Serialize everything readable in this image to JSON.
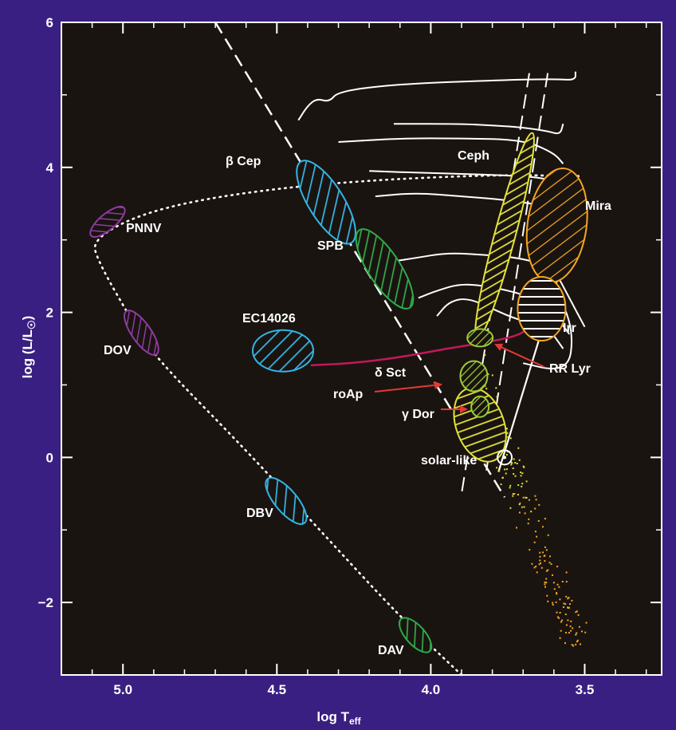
{
  "chart_data": {
    "type": "scatter",
    "title": "",
    "xlabel": "log T",
    "xlabel_sub": "eff",
    "ylabel_pre": "log (L/L",
    "ylabel_post": ")",
    "xlim": [
      5.2,
      3.25
    ],
    "ylim": [
      -3,
      6
    ],
    "x_inverted": true,
    "x_ticks": [
      {
        "value": 5.0,
        "label": "5.0"
      },
      {
        "value": 4.5,
        "label": "4.5"
      },
      {
        "value": 4.0,
        "label": "4.0"
      },
      {
        "value": 3.5,
        "label": "3.5"
      }
    ],
    "y_ticks": [
      {
        "value": 6,
        "label": "6"
      },
      {
        "value": 4,
        "label": "4"
      },
      {
        "value": 2,
        "label": "2"
      },
      {
        "value": 0,
        "label": "0"
      },
      {
        "value": -2,
        "label": "−2"
      }
    ],
    "colors": {
      "background": "#3a1f82",
      "plot_area": "#1a1410",
      "cyan": "#33b5e5",
      "green": "#2faa4a",
      "yellow": "#e2e23a",
      "orange": "#f5a623",
      "purple": "#8e3ba0",
      "light_green": "#9ccc3a",
      "magenta": "#c2185b",
      "arrow_red": "#e53935",
      "white": "#ffffff"
    },
    "regions": [
      {
        "label": "β Cep",
        "x": 4.34,
        "y": 3.55,
        "color": "cyan"
      },
      {
        "label": "SPB",
        "x": 4.14,
        "y": 2.35,
        "color": "green"
      },
      {
        "label": "PNNV",
        "x": 5.04,
        "y": 3.15,
        "color": "purple"
      },
      {
        "label": "DOV",
        "x": 4.94,
        "y": 1.73,
        "color": "purple"
      },
      {
        "label": "EC14026",
        "x": 4.48,
        "y": 1.47,
        "color": "cyan"
      },
      {
        "label": "DBV",
        "x": 4.47,
        "y": -0.6,
        "color": "cyan"
      },
      {
        "label": "DAV",
        "x": 4.05,
        "y": -2.45,
        "color": "green"
      },
      {
        "label": "Ceph",
        "x": 3.7,
        "y": 3.5,
        "color": "yellow"
      },
      {
        "label": "Mira",
        "x": 3.58,
        "y": 3.28,
        "color": "orange"
      },
      {
        "label": "Irr",
        "x": 3.63,
        "y": 2.05,
        "color": "orange"
      },
      {
        "label": "RR Lyr",
        "x": 3.83,
        "y": 1.65,
        "color": "light_green"
      },
      {
        "label": "δ Sct",
        "x": 3.84,
        "y": 1.15,
        "color": "light_green"
      },
      {
        "label": "roAp",
        "x": 3.87,
        "y": 1.0,
        "color": "light_green"
      },
      {
        "label": "γ Dor",
        "x": 3.84,
        "y": 0.7,
        "color": "light_green"
      },
      {
        "label": "solar-like",
        "x": 3.76,
        "y": 0.4,
        "color": "yellow"
      }
    ],
    "annotations": {
      "beta_cep": "β Cep",
      "spb": "SPB",
      "pnnv": "PNNV",
      "dov": "DOV",
      "ec14026": "EC14026",
      "dbv": "DBV",
      "dav": "DAV",
      "ceph": "Ceph",
      "mira": "Mira",
      "irr": "Irr",
      "rr_lyr": "RR Lyr",
      "delta_sct": "δ Sct",
      "roap": "roAp",
      "gamma_dor": "γ Dor",
      "solar_like": "solar-like"
    },
    "grid": false,
    "legend": "none"
  }
}
